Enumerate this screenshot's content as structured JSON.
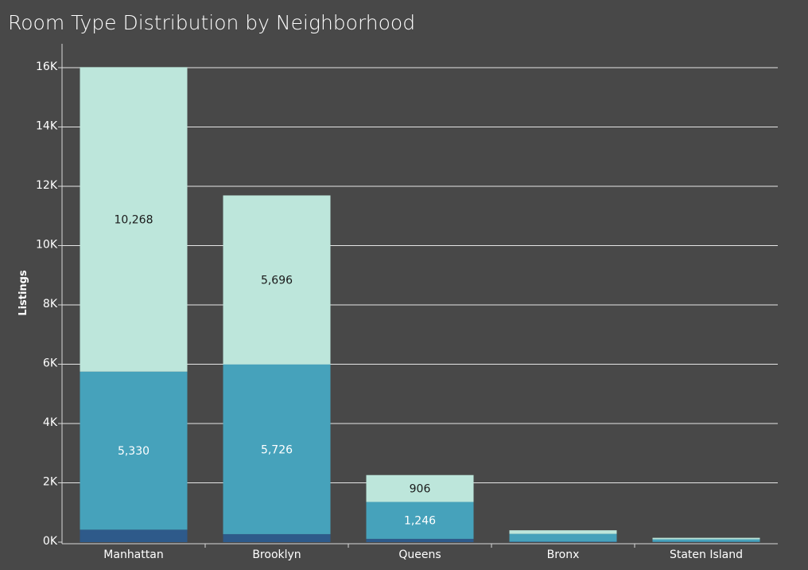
{
  "chart_data": {
    "type": "bar",
    "stacked": true,
    "title": "Room Type Distribution by Neighborhood",
    "xlabel": "",
    "ylabel": "Listings",
    "ylim": [
      0,
      16000
    ],
    "yticks": [
      {
        "value": 0,
        "label": "0K"
      },
      {
        "value": 2000,
        "label": "2K"
      },
      {
        "value": 4000,
        "label": "4K"
      },
      {
        "value": 6000,
        "label": "6K"
      },
      {
        "value": 8000,
        "label": "8K"
      },
      {
        "value": 10000,
        "label": "10K"
      },
      {
        "value": 12000,
        "label": "12K"
      },
      {
        "value": 14000,
        "label": "14K"
      },
      {
        "value": 16000,
        "label": "16K"
      }
    ],
    "categories": [
      "Manhattan",
      "Brooklyn",
      "Queens",
      "Bronx",
      "Staten Island"
    ],
    "series": [
      {
        "color": "#2e5a8a",
        "label_color": "#ffffff",
        "values": [
          420,
          270,
          110,
          15,
          10
        ],
        "labels": [
          "",
          "",
          "",
          "",
          ""
        ]
      },
      {
        "color": "#46a2bb",
        "label_color": "#ffffff",
        "values": [
          5330,
          5726,
          1246,
          265,
          85
        ],
        "labels": [
          "5,330",
          "5,726",
          "1,246",
          "",
          ""
        ]
      },
      {
        "color": "#bde6db",
        "label_color": "#1a1a1a",
        "values": [
          10268,
          5696,
          906,
          120,
          50
        ],
        "labels": [
          "10,268",
          "5,696",
          "906",
          "",
          ""
        ]
      }
    ],
    "grid": true,
    "legend": "none"
  }
}
